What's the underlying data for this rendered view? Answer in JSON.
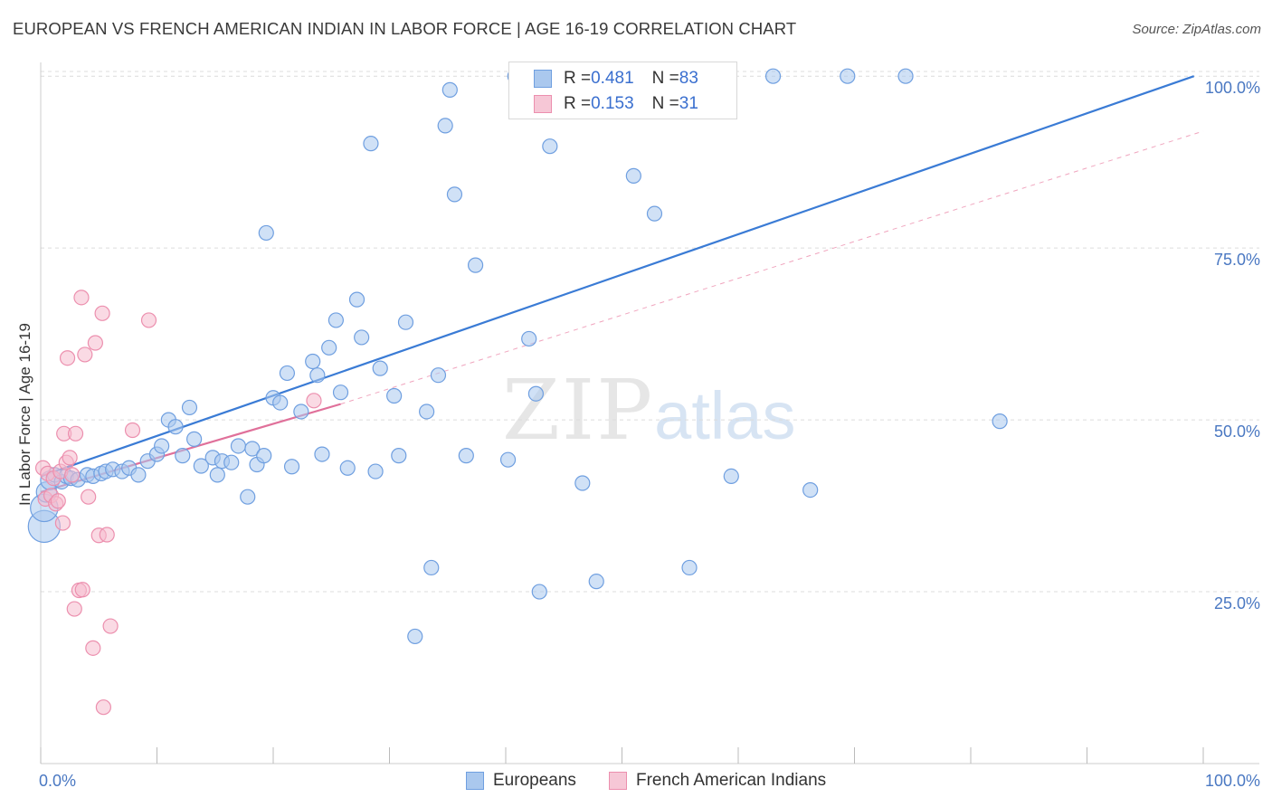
{
  "header": {
    "title": "EUROPEAN VS FRENCH AMERICAN INDIAN IN LABOR FORCE | AGE 16-19 CORRELATION CHART",
    "source": "Source: ZipAtlas.com"
  },
  "watermark": {
    "zip": "ZIP",
    "atlas": "atlas"
  },
  "legend": {
    "rows": [
      {
        "r_label": "R = ",
        "r_value": "0.481",
        "n_label": "N = ",
        "n_value": "83"
      },
      {
        "r_label": "R = ",
        "r_value": "0.153",
        "n_label": "N = ",
        "n_value": "31"
      }
    ]
  },
  "bottom_legend": {
    "europeans": "Europeans",
    "french": "French American Indians"
  },
  "colors": {
    "blue": "#3a7bd5",
    "blue_fill": "#aac8ee",
    "blue_stroke": "#6f9fe0",
    "pink": "#e0709a",
    "pink_fill": "#f6bccd",
    "pink_stroke": "#ec8fae",
    "grid": "#dcdcdc",
    "tick_text": "#4a78c2"
  },
  "chart_data": {
    "type": "scatter",
    "title": "EUROPEAN VS FRENCH AMERICAN INDIAN IN LABOR FORCE | AGE 16-19 CORRELATION CHART",
    "xlabel": "",
    "ylabel": "In Labor Force | Age 16-19",
    "xlim": [
      0,
      100
    ],
    "ylim": [
      0,
      102
    ],
    "x_tick_labels": [
      "0.0%",
      "100.0%"
    ],
    "y_ticks": [
      25,
      50,
      75,
      100
    ],
    "y_tick_labels": [
      "25.0%",
      "50.0%",
      "75.0%",
      "100.0%"
    ],
    "series": [
      {
        "name": "Europeans",
        "color": "#3a7bd5",
        "r": 0.481,
        "n": 83,
        "trend": {
          "x": [
            0,
            99.2
          ],
          "y": [
            41.8,
            100
          ]
        },
        "points": [
          [
            0.3,
            34.5,
            2.2
          ],
          [
            0.3,
            37.2,
            1.9
          ],
          [
            0.5,
            39.5,
            1.4
          ],
          [
            0.8,
            41.2,
            1.3
          ],
          [
            1.2,
            42.0,
            1.0
          ],
          [
            1.8,
            41.0,
            1.0
          ],
          [
            2.2,
            41.8,
            1.0
          ],
          [
            2.6,
            41.5,
            1.0
          ],
          [
            3.2,
            41.3,
            1.0
          ],
          [
            4.0,
            42.0,
            1.0
          ],
          [
            4.5,
            41.8,
            1.0
          ],
          [
            5.2,
            42.2,
            1.0
          ],
          [
            5.6,
            42.5,
            1.0
          ],
          [
            6.2,
            42.8,
            1.0
          ],
          [
            7.0,
            42.5,
            1.0
          ],
          [
            7.6,
            43.0,
            1.0
          ],
          [
            8.4,
            42.0,
            1.0
          ],
          [
            9.2,
            44.0,
            1.0
          ],
          [
            10.0,
            45.0,
            1.0
          ],
          [
            10.4,
            46.2,
            1.0
          ],
          [
            11.0,
            50.0,
            1.0
          ],
          [
            11.6,
            49.0,
            1.0
          ],
          [
            12.2,
            44.8,
            1.0
          ],
          [
            12.8,
            51.8,
            1.0
          ],
          [
            13.2,
            47.2,
            1.0
          ],
          [
            13.8,
            43.3,
            1.0
          ],
          [
            14.8,
            44.5,
            1.0
          ],
          [
            15.2,
            42.0,
            1.0
          ],
          [
            15.6,
            44.0,
            1.0
          ],
          [
            16.4,
            43.8,
            1.0
          ],
          [
            17.0,
            46.2,
            1.0
          ],
          [
            17.8,
            38.8,
            1.0
          ],
          [
            18.2,
            45.8,
            1.0
          ],
          [
            18.6,
            43.5,
            1.0
          ],
          [
            19.2,
            44.8,
            1.0
          ],
          [
            19.4,
            77.2,
            1.0
          ],
          [
            20.0,
            53.2,
            1.0
          ],
          [
            20.6,
            52.5,
            1.0
          ],
          [
            21.2,
            56.8,
            1.0
          ],
          [
            21.6,
            43.2,
            1.0
          ],
          [
            22.4,
            51.2,
            1.0
          ],
          [
            23.4,
            58.5,
            1.0
          ],
          [
            23.8,
            56.5,
            1.0
          ],
          [
            24.2,
            45.0,
            1.0
          ],
          [
            24.8,
            60.5,
            1.0
          ],
          [
            25.4,
            64.5,
            1.0
          ],
          [
            25.8,
            54.0,
            1.0
          ],
          [
            26.4,
            43.0,
            1.0
          ],
          [
            27.2,
            67.5,
            1.0
          ],
          [
            27.6,
            62.0,
            1.0
          ],
          [
            28.4,
            90.2,
            1.0
          ],
          [
            28.8,
            42.5,
            1.0
          ],
          [
            29.2,
            57.5,
            1.0
          ],
          [
            30.4,
            53.5,
            1.0
          ],
          [
            30.8,
            44.8,
            1.0
          ],
          [
            31.4,
            64.2,
            1.0
          ],
          [
            32.2,
            18.5,
            1.0
          ],
          [
            33.2,
            51.2,
            1.0
          ],
          [
            33.6,
            28.5,
            1.0
          ],
          [
            34.2,
            56.5,
            1.0
          ],
          [
            34.8,
            92.8,
            1.0
          ],
          [
            35.2,
            98.0,
            1.0
          ],
          [
            35.6,
            82.8,
            1.0
          ],
          [
            36.6,
            44.8,
            1.0
          ],
          [
            37.4,
            72.5,
            1.0
          ],
          [
            40.2,
            44.2,
            1.0
          ],
          [
            40.8,
            100.0,
            1.0
          ],
          [
            42.0,
            61.8,
            1.0
          ],
          [
            42.6,
            53.8,
            1.0
          ],
          [
            42.9,
            25.0,
            1.0
          ],
          [
            43.8,
            89.8,
            1.0
          ],
          [
            44.4,
            100.0,
            1.0
          ],
          [
            46.6,
            40.8,
            1.0
          ],
          [
            47.8,
            26.5,
            1.0
          ],
          [
            49.4,
            100.0,
            1.0
          ],
          [
            51.0,
            85.5,
            1.0
          ],
          [
            52.8,
            80.0,
            1.0
          ],
          [
            55.8,
            28.5,
            1.0
          ],
          [
            59.4,
            41.8,
            1.0
          ],
          [
            63.0,
            100.0,
            1.0
          ],
          [
            66.2,
            39.8,
            1.0
          ],
          [
            69.4,
            100.0,
            1.0
          ],
          [
            74.4,
            100.0,
            1.0
          ],
          [
            82.5,
            49.8,
            1.0
          ]
        ]
      },
      {
        "name": "French American Indians",
        "color": "#e0709a",
        "r": 0.153,
        "n": 31,
        "trend": {
          "x": [
            0,
            25.8
          ],
          "y": [
            39.5,
            52.3
          ]
        },
        "trend_extension": {
          "x": [
            25.8,
            100
          ],
          "y": [
            52.3,
            92
          ]
        },
        "points": [
          [
            0.2,
            43.0,
            1.0
          ],
          [
            0.4,
            38.5,
            1.0
          ],
          [
            0.6,
            42.2,
            1.0
          ],
          [
            0.9,
            39.0,
            1.0
          ],
          [
            1.1,
            41.5,
            1.0
          ],
          [
            1.3,
            37.8,
            1.0
          ],
          [
            1.5,
            38.2,
            1.0
          ],
          [
            1.7,
            42.5,
            1.0
          ],
          [
            1.9,
            35.0,
            1.0
          ],
          [
            2.0,
            48.0,
            1.0
          ],
          [
            2.2,
            43.8,
            1.0
          ],
          [
            2.3,
            59.0,
            1.0
          ],
          [
            2.5,
            44.5,
            1.0
          ],
          [
            2.7,
            42.0,
            1.0
          ],
          [
            2.9,
            22.5,
            1.0
          ],
          [
            3.0,
            48.0,
            1.0
          ],
          [
            3.3,
            25.2,
            1.0
          ],
          [
            3.5,
            67.8,
            1.0
          ],
          [
            3.6,
            25.3,
            1.0
          ],
          [
            3.8,
            59.5,
            1.0
          ],
          [
            4.1,
            38.8,
            1.0
          ],
          [
            4.5,
            16.8,
            1.0
          ],
          [
            4.7,
            61.2,
            1.0
          ],
          [
            5.0,
            33.2,
            1.0
          ],
          [
            5.3,
            65.5,
            1.0
          ],
          [
            5.4,
            8.2,
            1.0
          ],
          [
            5.7,
            33.3,
            1.0
          ],
          [
            6.0,
            20.0,
            1.0
          ],
          [
            7.9,
            48.5,
            1.0
          ],
          [
            9.3,
            64.5,
            1.0
          ],
          [
            23.5,
            52.8,
            1.0
          ]
        ]
      }
    ]
  }
}
